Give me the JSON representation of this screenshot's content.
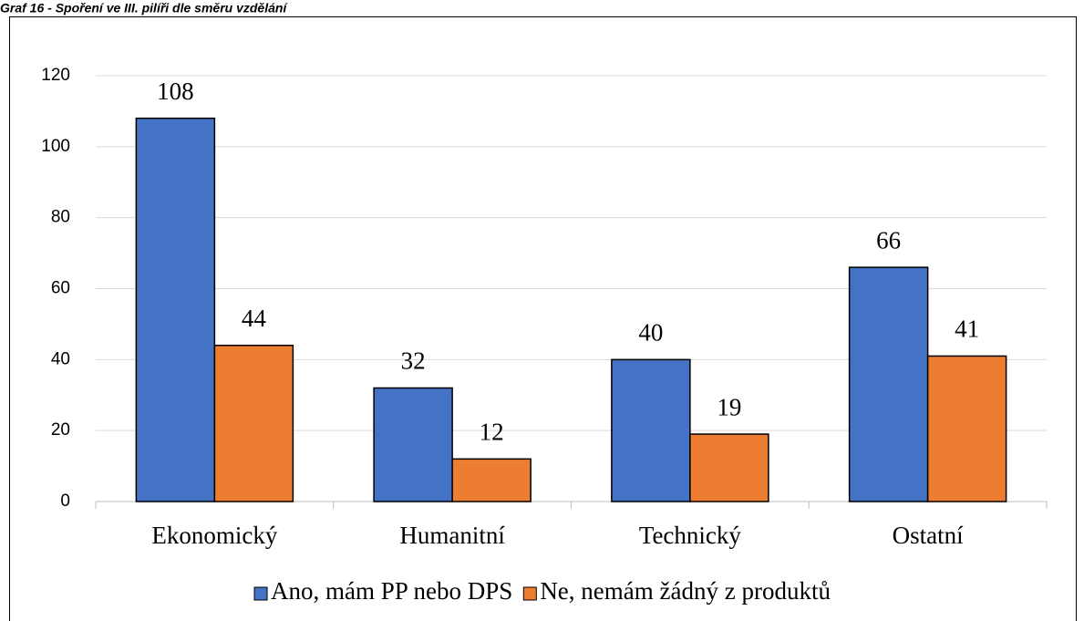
{
  "chart_data": {
    "type": "bar",
    "title": "Graf 16 - Spoření ve III. pilíři dle směru vzdělání",
    "categories": [
      "Ekonomický",
      "Humanitní",
      "Technický",
      "Ostatní"
    ],
    "series": [
      {
        "name": "Ano, mám PP nebo DPS",
        "color": "#4472c4",
        "values": [
          108,
          32,
          40,
          66
        ]
      },
      {
        "name": "Ne, nemám žádný z produktů",
        "color": "#ed7d31",
        "values": [
          44,
          12,
          19,
          41
        ]
      }
    ],
    "ylim": [
      0,
      120
    ],
    "yticks": [
      0,
      20,
      40,
      60,
      80,
      100,
      120
    ],
    "grid": true,
    "legend": "bottom"
  }
}
